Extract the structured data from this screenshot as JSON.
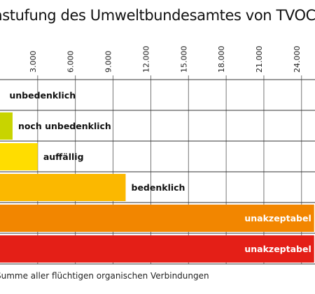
{
  "title": "Einstufung des Umweltbundesamtes von TVOC*-Belastungen",
  "footnote": "*TVOC: Summe aller flüchtigen organischen Verbindungen",
  "chart_data": {
    "type": "bar",
    "orientation": "horizontal",
    "x_ticks": [
      "3.000",
      "6.000",
      "9.000",
      "12.000",
      "15.000",
      "18.000",
      "21.000",
      "24.000"
    ],
    "tick_values": [
      3000,
      6000,
      9000,
      12000,
      15000,
      18000,
      21000,
      24000
    ],
    "xlim": [
      0,
      25000
    ],
    "categories": [
      "unbedenklich",
      "noch unbedenklich",
      "auffällig",
      "bedenklich",
      "unakzeptabel",
      "unakzeptabel"
    ],
    "values": [
      300,
      1000,
      3000,
      10000,
      25000,
      25000
    ],
    "colors": [
      "#ffffff",
      "#c8d400",
      "#ffdd00",
      "#fbb800",
      "#f28600",
      "#e41f17"
    ],
    "label_colors": [
      "#111111",
      "#111111",
      "#111111",
      "#111111",
      "#ffffff",
      "#ffffff"
    ],
    "label_inside": [
      false,
      false,
      false,
      false,
      true,
      true
    ],
    "grid": true
  }
}
